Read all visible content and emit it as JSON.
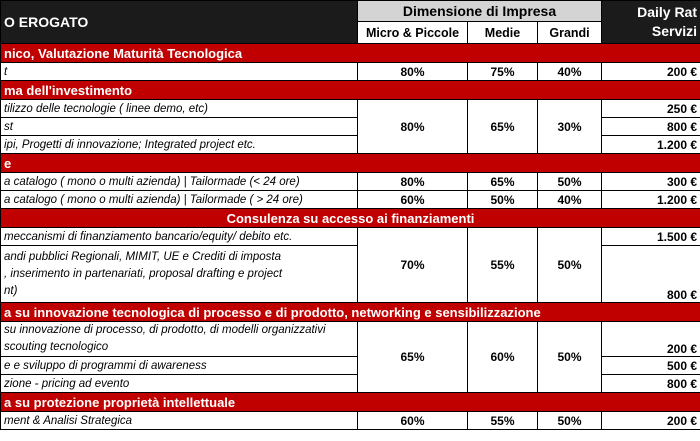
{
  "header": {
    "service_title": "O EROGATO",
    "dimension_title": "Dimensione di Impresa",
    "rate_title_line1": "Daily Rat",
    "rate_title_line2": "Servizi",
    "columns": [
      "Micro & Piccole",
      "Medie",
      "Grandi"
    ]
  },
  "sections": [
    {
      "title": "nico, Valutazione Maturità Tecnologica",
      "rows": [
        {
          "desc": "t",
          "micro": "80%",
          "medie": "75%",
          "grandi": "40%",
          "price": "200 €"
        }
      ]
    },
    {
      "title": "ma dell'investimento",
      "rows": [
        {
          "desc": "tilizzo delle tecnologie ( linee demo, etc)",
          "price": "250 €"
        },
        {
          "desc": "st",
          "price": "800 €"
        },
        {
          "desc": "ipi, Progetti di innovazione; Integrated project etc.",
          "price": "1.200 €"
        }
      ],
      "merged": {
        "micro": "80%",
        "medie": "65%",
        "grandi": "30%"
      }
    },
    {
      "title": "e",
      "rows": [
        {
          "desc": " a catalogo ( mono o multi azienda) | Tailormade (<  24 ore)",
          "micro": "80%",
          "medie": "65%",
          "grandi": "50%",
          "price": "300 €"
        },
        {
          "desc": " a catalogo ( mono o multi azienda) | Tailormade ( > 24 ore)",
          "micro": "60%",
          "medie": "50%",
          "grandi": "40%",
          "price": "1.200 €"
        }
      ]
    },
    {
      "title": "Consulenza su accesso ai finanziamenti",
      "rows": [
        {
          "desc": "meccanismi di finanziamento bancario/equity/ debito etc.",
          "price": "1.500 €"
        },
        {
          "desc_lines": [
            "andi pubblici Regionali, MIMIT, UE e Crediti di imposta",
            ", inserimento in partenariati, proposal drafting e project",
            "nt)"
          ],
          "price": "800 €"
        }
      ],
      "merged": {
        "micro": "70%",
        "medie": "55%",
        "grandi": "50%"
      }
    },
    {
      "title": "a su innovazione tecnologica di processo e di prodotto, networking e sensibilizzazione",
      "rows": [
        {
          "desc_lines": [
            "su innovazione di processo, di prodotto, di modelli organizzativi",
            " scouting tecnologico"
          ],
          "price": "200 €"
        },
        {
          "desc": "e e sviluppo di programmi di awareness",
          "price": "500 €"
        },
        {
          "desc": "zione - pricing ad evento",
          "price": "800 €"
        }
      ],
      "merged": {
        "micro": "65%",
        "medie": "60%",
        "grandi": "50%"
      }
    },
    {
      "title": "a su protezione proprietà intellettuale",
      "rows": [
        {
          "desc": "ment & Analisi Strategica",
          "micro": "60%",
          "medie": "55%",
          "grandi": "50%",
          "price": "200 €"
        }
      ]
    }
  ]
}
